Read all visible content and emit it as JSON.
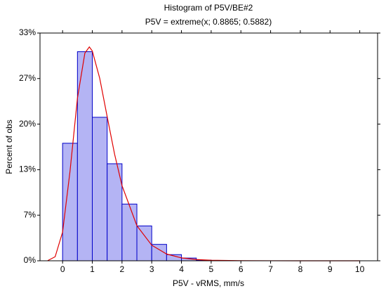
{
  "chart_data": {
    "type": "histogram",
    "title": "Histogram of P5V/BE#2",
    "subtitle": "P5V = extreme(x; 0.8865; 0.5882)",
    "x_label": "P5V - vRMS, mm/s",
    "y_label": "Percent of obs",
    "bins": [
      0,
      0.5,
      1,
      1.5,
      2,
      2.5,
      3,
      3.5,
      4,
      4.5,
      5
    ],
    "values": [
      17.2,
      30.6,
      21.0,
      14.2,
      8.3,
      5.1,
      2.4,
      0.9,
      0.4,
      0.1
    ],
    "color": "#b4b4f4",
    "edge_color": "#0000c8",
    "fit": {
      "x": [
        -0.5,
        -0.25,
        0,
        0.25,
        0.5,
        0.75,
        0.9,
        1,
        1.25,
        1.5,
        1.75,
        2,
        2.5,
        3,
        3.5,
        4,
        4.5,
        5,
        6,
        8,
        10
      ],
      "values": [
        0.023,
        0.59,
        4.2,
        13.1,
        23.8,
        30.4,
        31.3,
        30.7,
        26.7,
        21.1,
        15.6,
        11.0,
        5.13,
        2.28,
        0.99,
        0.425,
        0.18,
        0.078,
        0.014,
        0.0005,
        0
      ],
      "color": "#e00000"
    },
    "xlim": [
      -0.76,
      10.6
    ],
    "xticks": [
      0,
      1,
      2,
      3,
      4,
      5,
      6,
      7,
      8,
      9,
      10
    ],
    "ylim": [
      0,
      33.33
    ],
    "yticks": [
      {
        "value": 0,
        "label": "0%"
      },
      {
        "value": 6.67,
        "label": "7%"
      },
      {
        "value": 13.33,
        "label": "13%"
      },
      {
        "value": 20,
        "label": "20%"
      },
      {
        "value": 26.67,
        "label": "27%"
      },
      {
        "value": 33.33,
        "label": "33%"
      }
    ],
    "grid": false
  }
}
